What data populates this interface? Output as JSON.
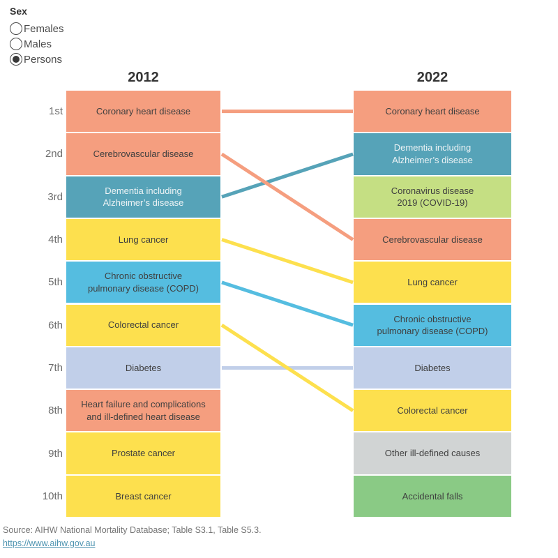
{
  "legend": {
    "title": "Sex",
    "options": [
      {
        "label": "Females",
        "selected": false
      },
      {
        "label": "Males",
        "selected": false
      },
      {
        "label": "Persons",
        "selected": true
      }
    ]
  },
  "chart_data": {
    "type": "slope",
    "description": "Leading causes of death by rank, 2012 vs 2022, Persons",
    "rank_labels": [
      "1st",
      "2nd",
      "3rd",
      "4th",
      "5th",
      "6th",
      "7th",
      "8th",
      "9th",
      "10th"
    ],
    "columns": [
      {
        "year": "2012",
        "items": [
          {
            "rank": 1,
            "label": "Coronary heart disease",
            "color": "#F59E7F",
            "text_color": "#3F3F3F"
          },
          {
            "rank": 2,
            "label": "Cerebrovascular disease",
            "color": "#F59E7F",
            "text_color": "#3F3F3F"
          },
          {
            "rank": 3,
            "label": "Dementia including\nAlzheimer’s disease",
            "color": "#56A3B8",
            "text_color": "#EDF3F5"
          },
          {
            "rank": 4,
            "label": "Lung cancer",
            "color": "#FDE04E",
            "text_color": "#3F3F3F"
          },
          {
            "rank": 5,
            "label": "Chronic obstructive\npulmonary disease (COPD)",
            "color": "#55BDE0",
            "text_color": "#3F3F3F"
          },
          {
            "rank": 6,
            "label": "Colorectal cancer",
            "color": "#FDE04E",
            "text_color": "#3F3F3F"
          },
          {
            "rank": 7,
            "label": "Diabetes",
            "color": "#C1CFE9",
            "text_color": "#3F3F3F"
          },
          {
            "rank": 8,
            "label": "Heart failure and complications\nand ill-defined heart disease",
            "color": "#F59E7F",
            "text_color": "#3F3F3F"
          },
          {
            "rank": 9,
            "label": "Prostate cancer",
            "color": "#FDE04E",
            "text_color": "#3F3F3F"
          },
          {
            "rank": 10,
            "label": "Breast cancer",
            "color": "#FDE04E",
            "text_color": "#3F3F3F"
          }
        ]
      },
      {
        "year": "2022",
        "items": [
          {
            "rank": 1,
            "label": "Coronary heart disease",
            "color": "#F59E7F",
            "text_color": "#3F3F3F"
          },
          {
            "rank": 2,
            "label": "Dementia including\nAlzheimer’s disease",
            "color": "#56A3B8",
            "text_color": "#EDF3F5"
          },
          {
            "rank": 3,
            "label": "Coronavirus disease\n2019 (COVID-19)",
            "color": "#C5DF83",
            "text_color": "#3F3F3F"
          },
          {
            "rank": 4,
            "label": "Cerebrovascular disease",
            "color": "#F59E7F",
            "text_color": "#3F3F3F"
          },
          {
            "rank": 5,
            "label": "Lung cancer",
            "color": "#FDE04E",
            "text_color": "#3F3F3F"
          },
          {
            "rank": 6,
            "label": "Chronic obstructive\npulmonary disease (COPD)",
            "color": "#55BDE0",
            "text_color": "#3F3F3F"
          },
          {
            "rank": 7,
            "label": "Diabetes",
            "color": "#C1CFE9",
            "text_color": "#3F3F3F"
          },
          {
            "rank": 8,
            "label": "Colorectal cancer",
            "color": "#FDE04E",
            "text_color": "#3F3F3F"
          },
          {
            "rank": 9,
            "label": "Other ill-defined causes",
            "color": "#D1D4D4",
            "text_color": "#3F3F3F"
          },
          {
            "rank": 10,
            "label": "Accidental falls",
            "color": "#8ACA85",
            "text_color": "#3F3F3F"
          }
        ]
      }
    ],
    "links": [
      {
        "cause": "Dementia including Alzheimer’s disease",
        "from_rank": 3,
        "to_rank": 2,
        "color": "#56A3B8"
      },
      {
        "cause": "Coronary heart disease",
        "from_rank": 1,
        "to_rank": 1,
        "color": "#F59E7F"
      },
      {
        "cause": "Cerebrovascular disease",
        "from_rank": 2,
        "to_rank": 4,
        "color": "#F59E7F"
      },
      {
        "cause": "Diabetes",
        "from_rank": 7,
        "to_rank": 7,
        "color": "#C1CFE9"
      },
      {
        "cause": "Lung cancer",
        "from_rank": 4,
        "to_rank": 5,
        "color": "#FDE04E"
      },
      {
        "cause": "Chronic obstructive pulmonary disease (COPD)",
        "from_rank": 5,
        "to_rank": 6,
        "color": "#55BDE0"
      },
      {
        "cause": "Colorectal cancer",
        "from_rank": 6,
        "to_rank": 8,
        "color": "#FDE04E"
      }
    ]
  },
  "footer": {
    "source": "Source: AIHW National Mortality Database; Table S3.1, Table S5.3.",
    "link": "https://www.aihw.gov.au"
  }
}
